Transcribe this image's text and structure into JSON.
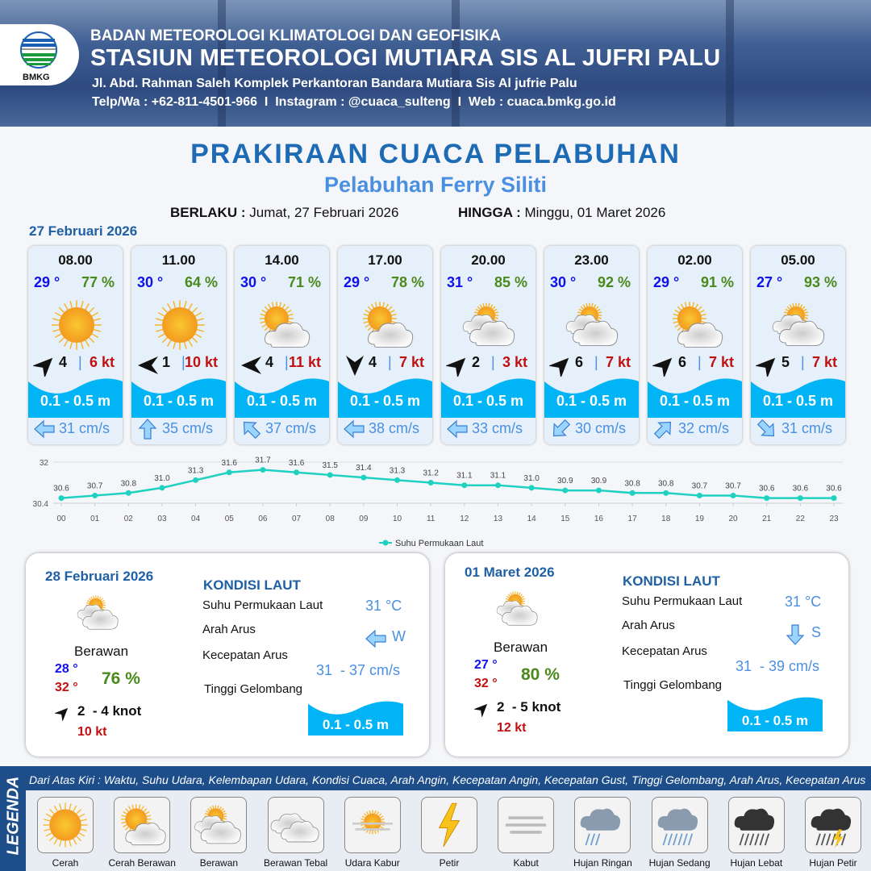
{
  "header": {
    "org": "BADAN METEOROLOGI KLIMATOLOGI DAN GEOFISIKA",
    "station": "STASIUN METEOROLOGI MUTIARA SIS AL JUFRI PALU",
    "address": "Jl. Abd. Rahman Saleh Komplek Perkantoran Bandara Mutiara Sis Al jufrie Palu",
    "contact": "Telp/Wa : +62-811-4501-966  I  Instagram : @cuaca_sulteng  I  Web : cuaca.bmkg.go.id",
    "logo_text": "BMKG"
  },
  "title": "PRAKIRAAN CUACA PELABUHAN",
  "subtitle": "Pelabuhan Ferry Siliti",
  "validity": {
    "from_label": "BERLAKU :",
    "from": "Jumat, 27 Februari 2026",
    "to_label": "HINGGA :",
    "to": "Minggu, 01 Maret 2026"
  },
  "day1_label": "27 Februari 2026",
  "colors": {
    "wave": "#00b4f5",
    "title": "#1e6bb5",
    "sst_line": "#1fd1c0"
  },
  "forecast": [
    {
      "time": "08.00",
      "temp": "29 °",
      "hum": "77 %",
      "weather": "Cerah",
      "wind_dir": "NE",
      "wind": "4",
      "gust": "6 kt",
      "wave": "0.1 - 0.5 m",
      "cur_dir": "W",
      "cur": "31 cm/s"
    },
    {
      "time": "11.00",
      "temp": "30 °",
      "hum": "64 %",
      "weather": "Cerah",
      "wind_dir": "W",
      "wind": "1",
      "gust": "10 kt",
      "wave": "0.1 - 0.5 m",
      "cur_dir": "N",
      "cur": "35 cm/s"
    },
    {
      "time": "14.00",
      "temp": "30 °",
      "hum": "71 %",
      "weather": "Cerah Berawan",
      "wind_dir": "W",
      "wind": "4",
      "gust": "11 kt",
      "wave": "0.1 - 0.5 m",
      "cur_dir": "NW",
      "cur": "37 cm/s"
    },
    {
      "time": "17.00",
      "temp": "29 °",
      "hum": "78 %",
      "weather": "Cerah Berawan",
      "wind_dir": "S",
      "wind": "4",
      "gust": "7 kt",
      "wave": "0.1 - 0.5 m",
      "cur_dir": "W",
      "cur": "38 cm/s"
    },
    {
      "time": "20.00",
      "temp": "31 °",
      "hum": "85 %",
      "weather": "Berawan",
      "wind_dir": "NE",
      "wind": "2",
      "gust": "3 kt",
      "wave": "0.1 - 0.5 m",
      "cur_dir": "W",
      "cur": "33 cm/s"
    },
    {
      "time": "23.00",
      "temp": "30 °",
      "hum": "92 %",
      "weather": "Berawan",
      "wind_dir": "NE",
      "wind": "6",
      "gust": "7 kt",
      "wave": "0.1 - 0.5 m",
      "cur_dir": "SW",
      "cur": "30 cm/s"
    },
    {
      "time": "02.00",
      "temp": "29 °",
      "hum": "91 %",
      "weather": "Cerah Berawan",
      "wind_dir": "NE",
      "wind": "6",
      "gust": "7 kt",
      "wave": "0.1 - 0.5 m",
      "cur_dir": "NE",
      "cur": "32 cm/s"
    },
    {
      "time": "05.00",
      "temp": "27 °",
      "hum": "93 %",
      "weather": "Berawan",
      "wind_dir": "NE",
      "wind": "5",
      "gust": "7 kt",
      "wave": "0.1 - 0.5 m",
      "cur_dir": "SE",
      "cur": "31 cm/s"
    }
  ],
  "chart_data": {
    "type": "line",
    "x": [
      "00",
      "01",
      "02",
      "03",
      "04",
      "05",
      "06",
      "07",
      "08",
      "09",
      "10",
      "11",
      "12",
      "13",
      "14",
      "15",
      "16",
      "17",
      "18",
      "19",
      "20",
      "21",
      "22",
      "23"
    ],
    "series": [
      {
        "name": "Suhu Permukaan Laut",
        "values": [
          30.6,
          30.7,
          30.8,
          31.0,
          31.3,
          31.6,
          31.7,
          31.6,
          31.5,
          31.4,
          31.3,
          31.2,
          31.1,
          31.1,
          31.0,
          30.9,
          30.9,
          30.8,
          30.8,
          30.7,
          30.7,
          30.6,
          30.6,
          30.6
        ]
      }
    ],
    "yticks": [
      "32",
      "30.4"
    ],
    "ylim": [
      30.4,
      32
    ],
    "grid": true,
    "legend": "bottom",
    "color": "#1fd1c0"
  },
  "days": [
    {
      "date": "28 Februari 2026",
      "weather": "Berawan",
      "tmin": "28 °",
      "tmax": "32 °",
      "hum": "76 %",
      "wind": "2  - 4 knot",
      "gust": "10 kt",
      "sea_title": "KONDISI LAUT",
      "sst_label": "Suhu Permukaan Laut",
      "sst": "31 °C",
      "cur_dir_label": "Arah Arus",
      "cur_dir": "W",
      "cur_speed_label": "Kecepatan Arus",
      "cur_speed": "31  - 37 cm/s",
      "wave_label": "Tinggi Gelombang",
      "wave": "0.1 - 0.5 m"
    },
    {
      "date": "01 Maret 2026",
      "weather": "Berawan",
      "tmin": "27 °",
      "tmax": "32 °",
      "hum": "80 %",
      "wind": "2  - 5 knot",
      "gust": "12 kt",
      "sea_title": "KONDISI LAUT",
      "sst_label": "Suhu Permukaan Laut",
      "sst": "31 °C",
      "cur_dir_label": "Arah Arus",
      "cur_dir": "S",
      "cur_speed_label": "Kecepatan Arus",
      "cur_speed": "31  - 39 cm/s",
      "wave_label": "Tinggi Gelombang",
      "wave": "0.1 - 0.5 m"
    }
  ],
  "legend": {
    "title": "LEGENDA",
    "desc": "Dari Atas Kiri : Waktu, Suhu Udara, Kelembapan Udara, Kondisi Cuaca, Arah Angin, Kecepatan Angin, Kecepatan Gust, Tinggi Gelombang, Arah Arus, Kecepatan Arus",
    "items": [
      "Cerah",
      "Cerah Berawan",
      "Berawan",
      "Berawan Tebal",
      "Udara Kabur",
      "Petir",
      "Kabut",
      "Hujan Ringan",
      "Hujan Sedang",
      "Hujan Lebat",
      "Hujan Petir"
    ]
  }
}
